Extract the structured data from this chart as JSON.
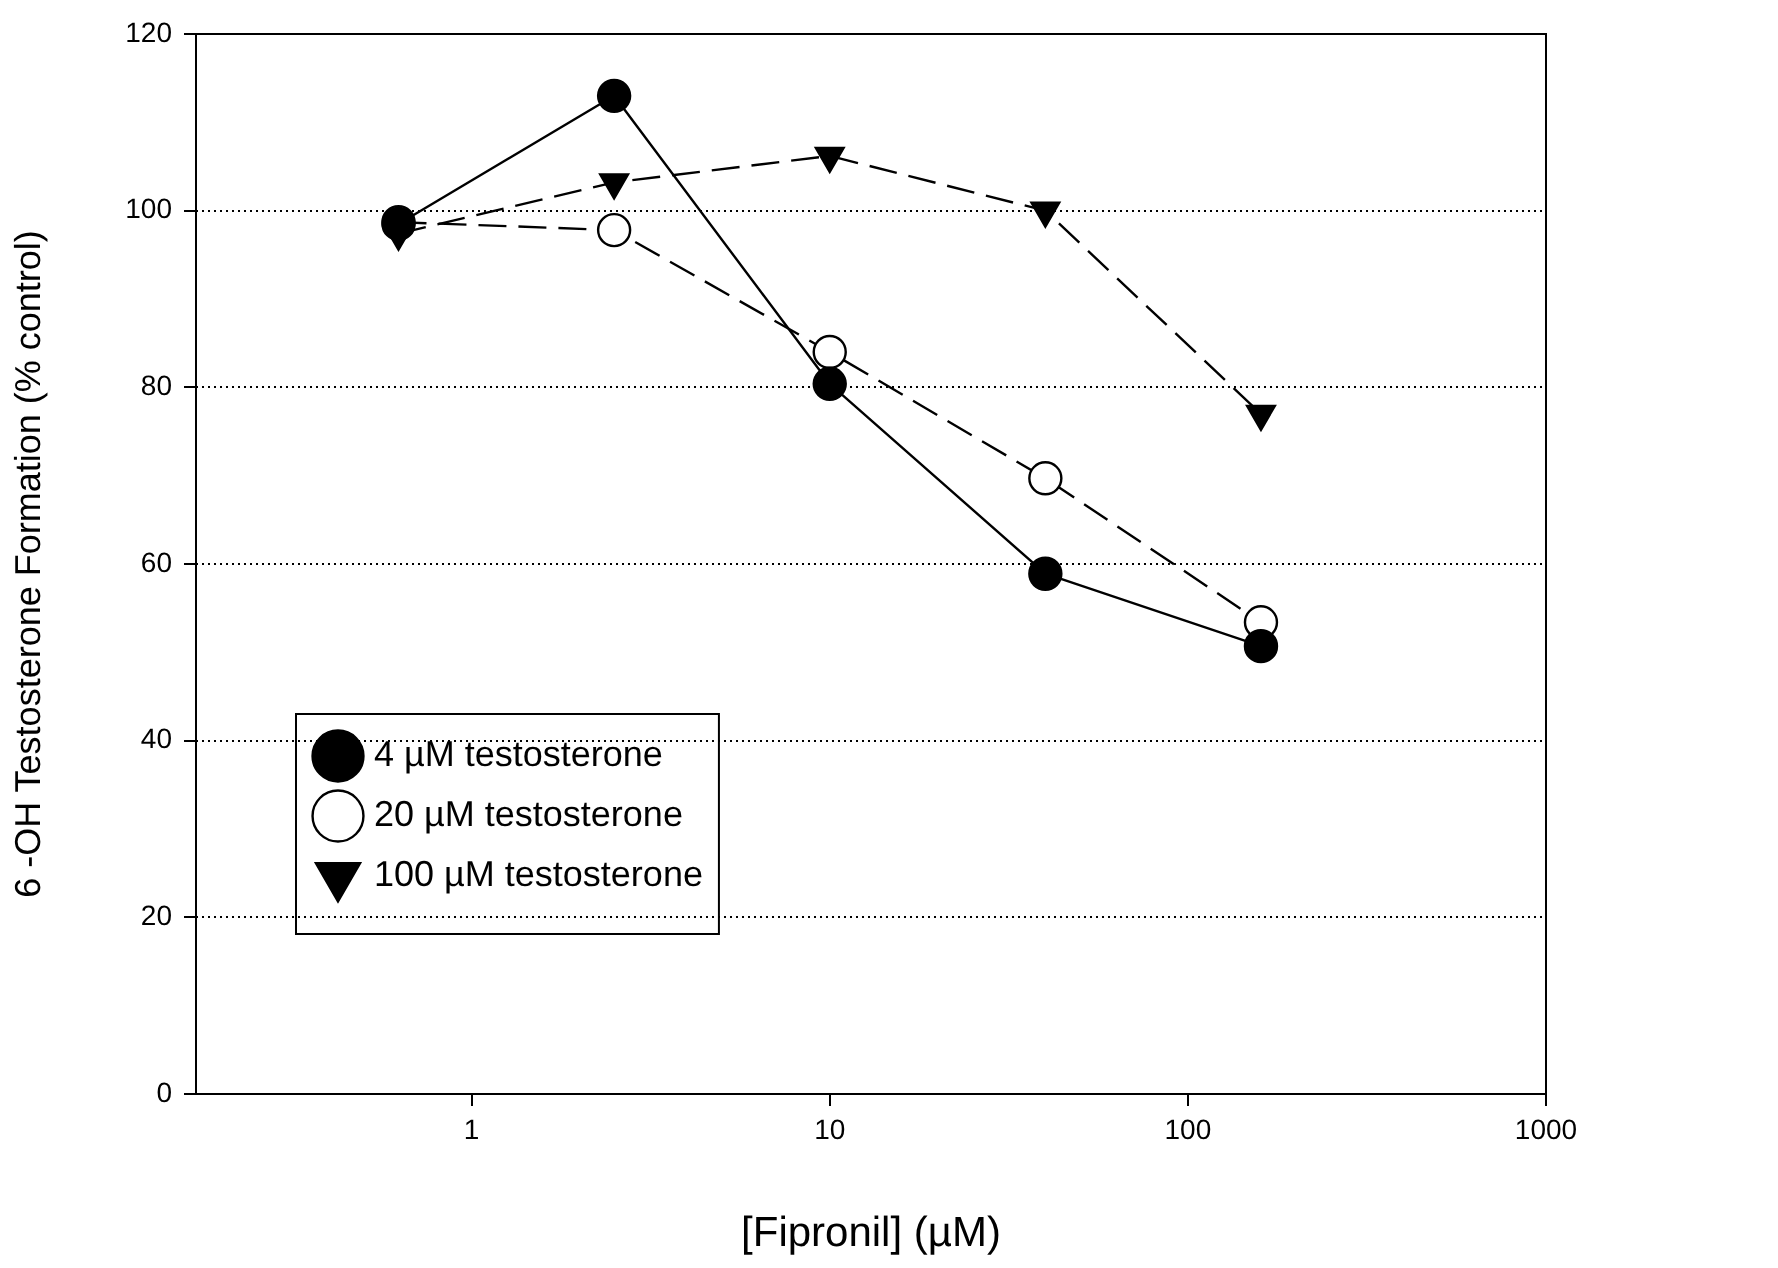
{
  "chart_data": {
    "type": "line",
    "xlabel": "[Fipronil] (µM)",
    "ylabel": "6 -OH Testosterone Formation (% control)",
    "log": "x",
    "xlim": [
      0.17,
      1000
    ],
    "xticks": [
      1,
      10,
      100,
      1000
    ],
    "ylim": [
      0,
      120
    ],
    "yticks": [
      0,
      20,
      40,
      60,
      80,
      100,
      120
    ],
    "grid": "y",
    "legend": "bottom left",
    "x": [
      0.625,
      2.5,
      10,
      40,
      160
    ],
    "series": [
      {
        "name": "4 µM testosterone",
        "color": "#000000",
        "marker": "circle",
        "line_style": "solid",
        "values": [
          98.5,
          113,
          80.4,
          58.9,
          50.7
        ]
      },
      {
        "name": "20 µM testosterone",
        "color": "#000000",
        "marker": "circle",
        "colors": [
          "#ffffff",
          "#ffffff",
          "#ffffff",
          "#ffffff",
          "#ffffff"
        ],
        "line_style": "dashed",
        "values": [
          98.7,
          97.8,
          84,
          69.7,
          53.4
        ]
      },
      {
        "name": "100 µM testosterone",
        "color": "#000000",
        "marker": "triangle",
        "line_style": "dashed",
        "values": [
          97.4,
          103.2,
          106.2,
          100,
          77
        ]
      }
    ]
  }
}
